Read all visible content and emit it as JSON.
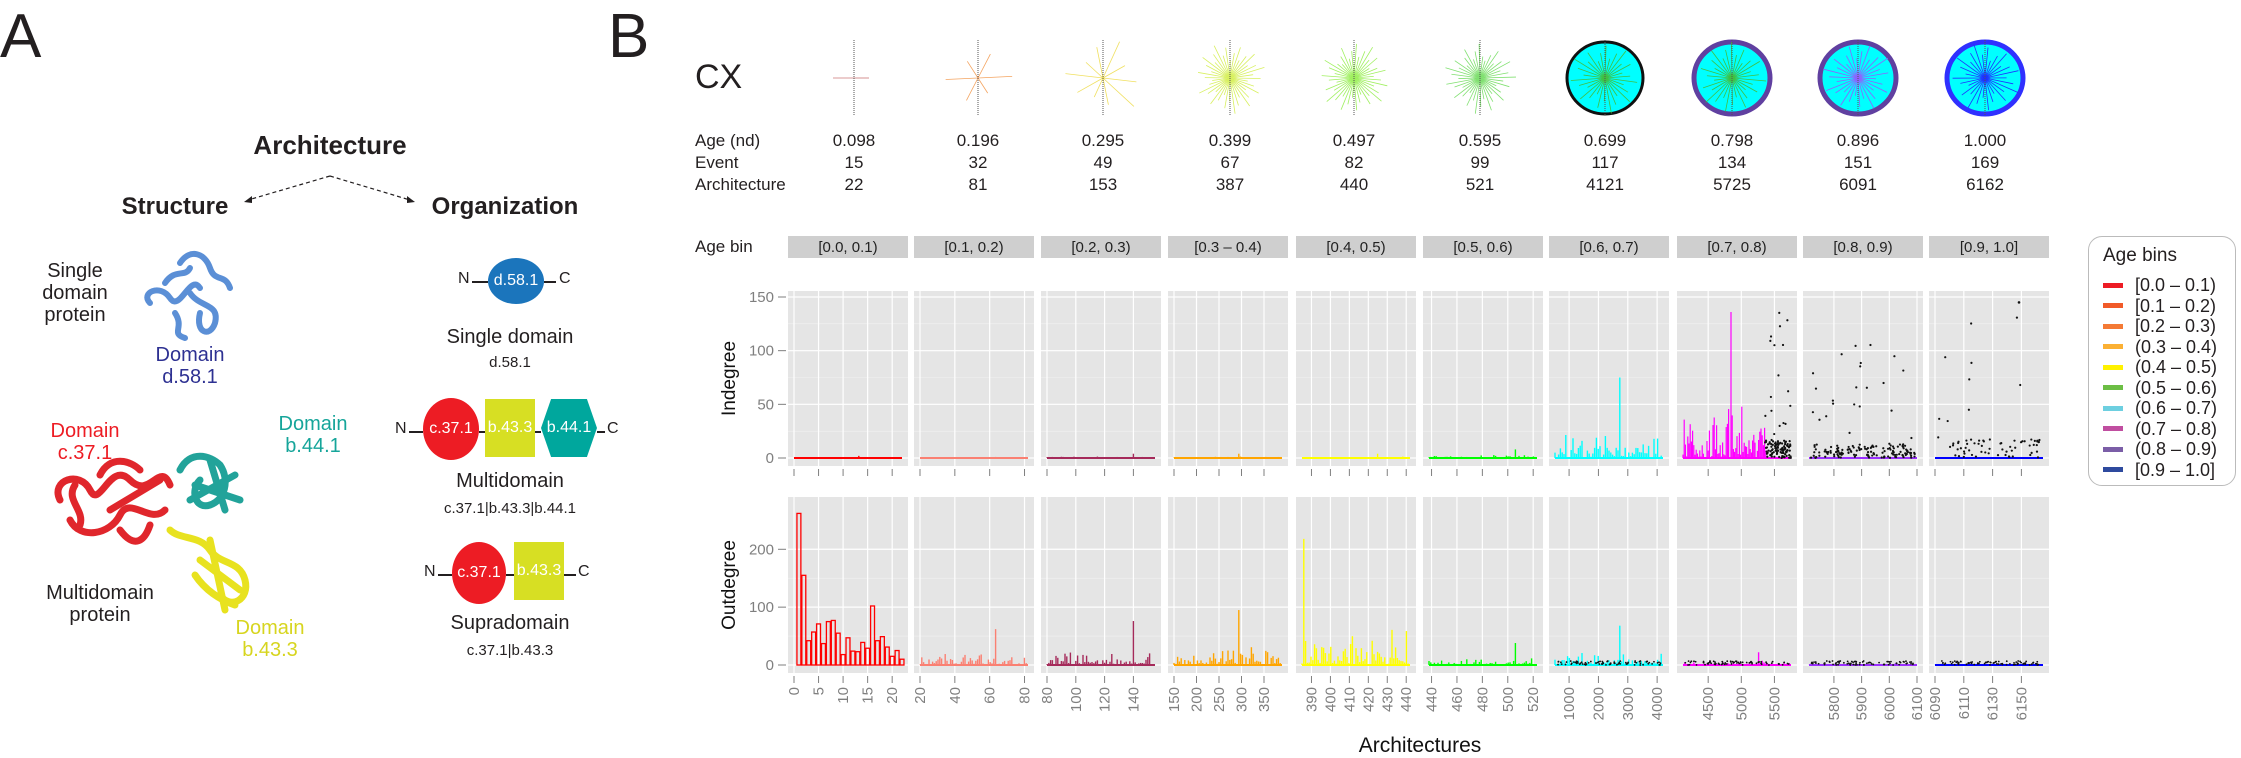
{
  "panel_a": {
    "letter": "A",
    "title": "Architecture",
    "structure_heading": "Structure",
    "organization_heading": "Organization",
    "single_domain_protein_label": [
      "Single",
      "domain",
      "protein"
    ],
    "domain_d58": {
      "label": "Domain",
      "id": "d.58.1",
      "color": "#2e3192"
    },
    "domain_c37": {
      "label": "Domain",
      "id": "c.37.1",
      "color": "#ed1c24"
    },
    "domain_b44": {
      "label": "Domain",
      "id": "b.44.1",
      "color": "#16a59a"
    },
    "domain_b43": {
      "label": "Domain",
      "id": "b.43.3",
      "color": "#d7d51f"
    },
    "multidomain_protein_label": [
      "Multidomain",
      "protein"
    ],
    "organizations": [
      {
        "name": "Single domain",
        "code": "d.58.1",
        "n_term": "N",
        "c_term": "C",
        "domains": [
          {
            "id": "d.58.1",
            "shape": "ellipse",
            "color": "#1b75bc"
          }
        ]
      },
      {
        "name": "Multidomain",
        "code": "c.37.1|b.43.3|b.44.1",
        "n_term": "N",
        "c_term": "C",
        "domains": [
          {
            "id": "c.37.1",
            "shape": "ellipse",
            "color": "#ed1c24"
          },
          {
            "id": "b.43.3",
            "shape": "square",
            "color": "#d7df23"
          },
          {
            "id": "b.44.1",
            "shape": "hexagon",
            "color": "#00a79d"
          }
        ]
      },
      {
        "name": "Supradomain",
        "code": "c.37.1|b.43.3",
        "n_term": "N",
        "c_term": "C",
        "domains": [
          {
            "id": "c.37.1",
            "shape": "ellipse",
            "color": "#ed1c24"
          },
          {
            "id": "b.43.3",
            "shape": "square",
            "color": "#d7df23"
          }
        ]
      }
    ]
  },
  "panel_b": {
    "letter": "B",
    "network_label": "CX",
    "stats_labels": {
      "age": "Age (nd)",
      "event": "Event",
      "architecture": "Architecture"
    },
    "stats": [
      {
        "age": "0.098",
        "event": "15",
        "architecture": "22"
      },
      {
        "age": "0.196",
        "event": "32",
        "architecture": "81"
      },
      {
        "age": "0.295",
        "event": "49",
        "architecture": "153"
      },
      {
        "age": "0.399",
        "event": "67",
        "architecture": "387"
      },
      {
        "age": "0.497",
        "event": "82",
        "architecture": "440"
      },
      {
        "age": "0.595",
        "event": "99",
        "architecture": "521"
      },
      {
        "age": "0.699",
        "event": "117",
        "architecture": "4121"
      },
      {
        "age": "0.798",
        "event": "134",
        "architecture": "5725"
      },
      {
        "age": "0.896",
        "event": "151",
        "architecture": "6091"
      },
      {
        "age": "1.000",
        "event": "169",
        "architecture": "6162"
      }
    ],
    "age_bin_label": "Age bin"
  },
  "chart_data": {
    "type": "bar",
    "title": "",
    "xlabel": "Architectures",
    "facet_label": "Age bin",
    "rows": [
      {
        "ylabel": "Indegree",
        "ylim": [
          0,
          150
        ],
        "yticks": [
          0,
          50,
          100,
          150
        ]
      },
      {
        "ylabel": "Outdegree",
        "ylim": [
          0,
          280
        ],
        "yticks": [
          0,
          100,
          200
        ]
      }
    ],
    "facets": [
      {
        "strip": "[0.0, 0.1)",
        "color": "#ff0000",
        "xlim": [
          0,
          22
        ],
        "xticks": [
          0,
          5,
          10,
          15,
          20
        ],
        "indegree_max": 2,
        "outdegree_max": 262,
        "outdegree_values": [
          262,
          155,
          42,
          57,
          71,
          37,
          75,
          77,
          55,
          18,
          47,
          24,
          23,
          39,
          29,
          102,
          42,
          49,
          31,
          15,
          25,
          10
        ]
      },
      {
        "strip": "[0.1, 0.2)",
        "color": "#fa8072",
        "xlim": [
          20,
          82
        ],
        "xticks": [
          20,
          40,
          60,
          80
        ],
        "indegree_max": 1,
        "outdegree_max": 62
      },
      {
        "strip": "[0.2, 0.3)",
        "color": "#a52a5a",
        "xlim": [
          80,
          155
        ],
        "xticks": [
          80,
          100,
          120,
          140
        ],
        "indegree_max": 4,
        "outdegree_max": 76
      },
      {
        "strip": "[0.3 – 0.4)",
        "color": "#ffa500",
        "xlim": [
          150,
          390
        ],
        "xticks": [
          150,
          200,
          250,
          300,
          350
        ],
        "indegree_max": 4,
        "outdegree_max": 95
      },
      {
        "strip": "[0.4, 0.5)",
        "color": "#ffff00",
        "xlim": [
          385,
          442
        ],
        "xticks": [
          390,
          400,
          410,
          420,
          430,
          440
        ],
        "indegree_max": 4,
        "outdegree_max": 218
      },
      {
        "strip": "[0.5, 0.6)",
        "color": "#00ff00",
        "xlim": [
          438,
          523
        ],
        "xticks": [
          440,
          460,
          480,
          500,
          520
        ],
        "indegree_max": 8,
        "outdegree_max": 38
      },
      {
        "strip": "[0.6, 0.7)",
        "color": "#00ffff",
        "xlim": [
          520,
          4200
        ],
        "xticks": [
          1000,
          2000,
          3000,
          4000
        ],
        "indegree_max": 75,
        "outdegree_max": 68
      },
      {
        "strip": "[0.7, 0.8)",
        "color": "#ff00ff",
        "xlim": [
          4120,
          5750
        ],
        "xticks": [
          4500,
          5000,
          5500
        ],
        "indegree_max": 136,
        "outdegree_max": 22
      },
      {
        "strip": "[0.8, 0.9)",
        "color": "#9b30ff",
        "xlim": [
          5710,
          6100
        ],
        "xticks": [
          5800,
          5900,
          6000,
          6100
        ],
        "indegree_max": 106,
        "outdegree_max": 3
      },
      {
        "strip": "[0.9, 1.0]",
        "color": "#0000ff",
        "xlim": [
          6090,
          6165
        ],
        "xticks": [
          6090,
          6110,
          6130,
          6150
        ],
        "indegree_max": 145,
        "outdegree_max": 2
      }
    ],
    "legend": {
      "title": "Age bins",
      "position": "right",
      "entries": [
        {
          "label": "[0.0 – 0.1)",
          "color": "#ed1c24"
        },
        {
          "label": "[0.1 – 0.2)",
          "color": "#f15a29"
        },
        {
          "label": "[0.2 – 0.3)",
          "color": "#f47a35"
        },
        {
          "label": "(0.3 – 0.4)",
          "color": "#fbb034"
        },
        {
          "label": "(0.4 – 0.5)",
          "color": "#fff200"
        },
        {
          "label": "(0.5 – 0.6)",
          "color": "#6cbe45"
        },
        {
          "label": "(0.6 – 0.7)",
          "color": "#6dcfe0"
        },
        {
          "label": "(0.7 – 0.8)",
          "color": "#c04ea0"
        },
        {
          "label": "(0.8 – 0.9)",
          "color": "#7b5ea7"
        },
        {
          "label": "[0.9 – 1.0]",
          "color": "#2e4a9e"
        }
      ]
    },
    "grid": true
  }
}
